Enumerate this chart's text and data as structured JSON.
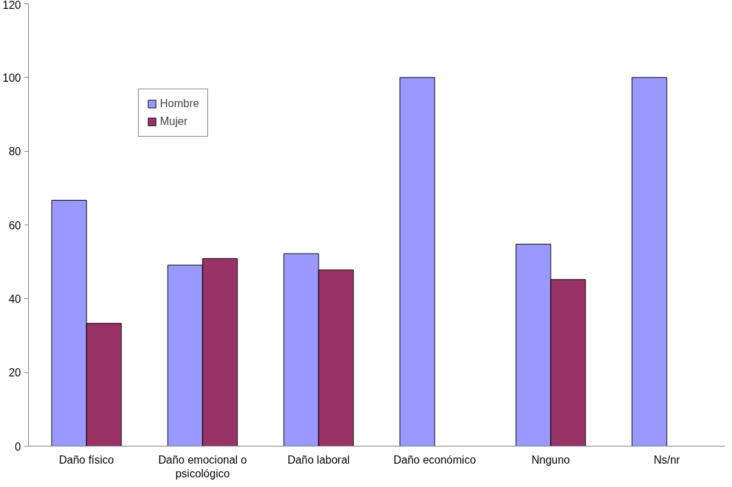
{
  "chart_data": {
    "type": "bar",
    "categories": [
      "Daño físico",
      "Daño emocional o psicológico",
      "Daño laboral",
      "Daño económico",
      "Nnguno",
      "Ns/nr"
    ],
    "series": [
      {
        "name": "Hombre",
        "color": "#9999ff",
        "values": [
          66.7,
          49.1,
          52.2,
          100,
          54.8,
          100
        ]
      },
      {
        "name": "Mujer",
        "color": "#993366",
        "values": [
          33.3,
          50.9,
          47.8,
          null,
          45.2,
          null
        ]
      }
    ],
    "ylim": [
      0,
      120
    ],
    "yticks": [
      0,
      20,
      40,
      60,
      80,
      100,
      120
    ],
    "legend": "top left"
  }
}
